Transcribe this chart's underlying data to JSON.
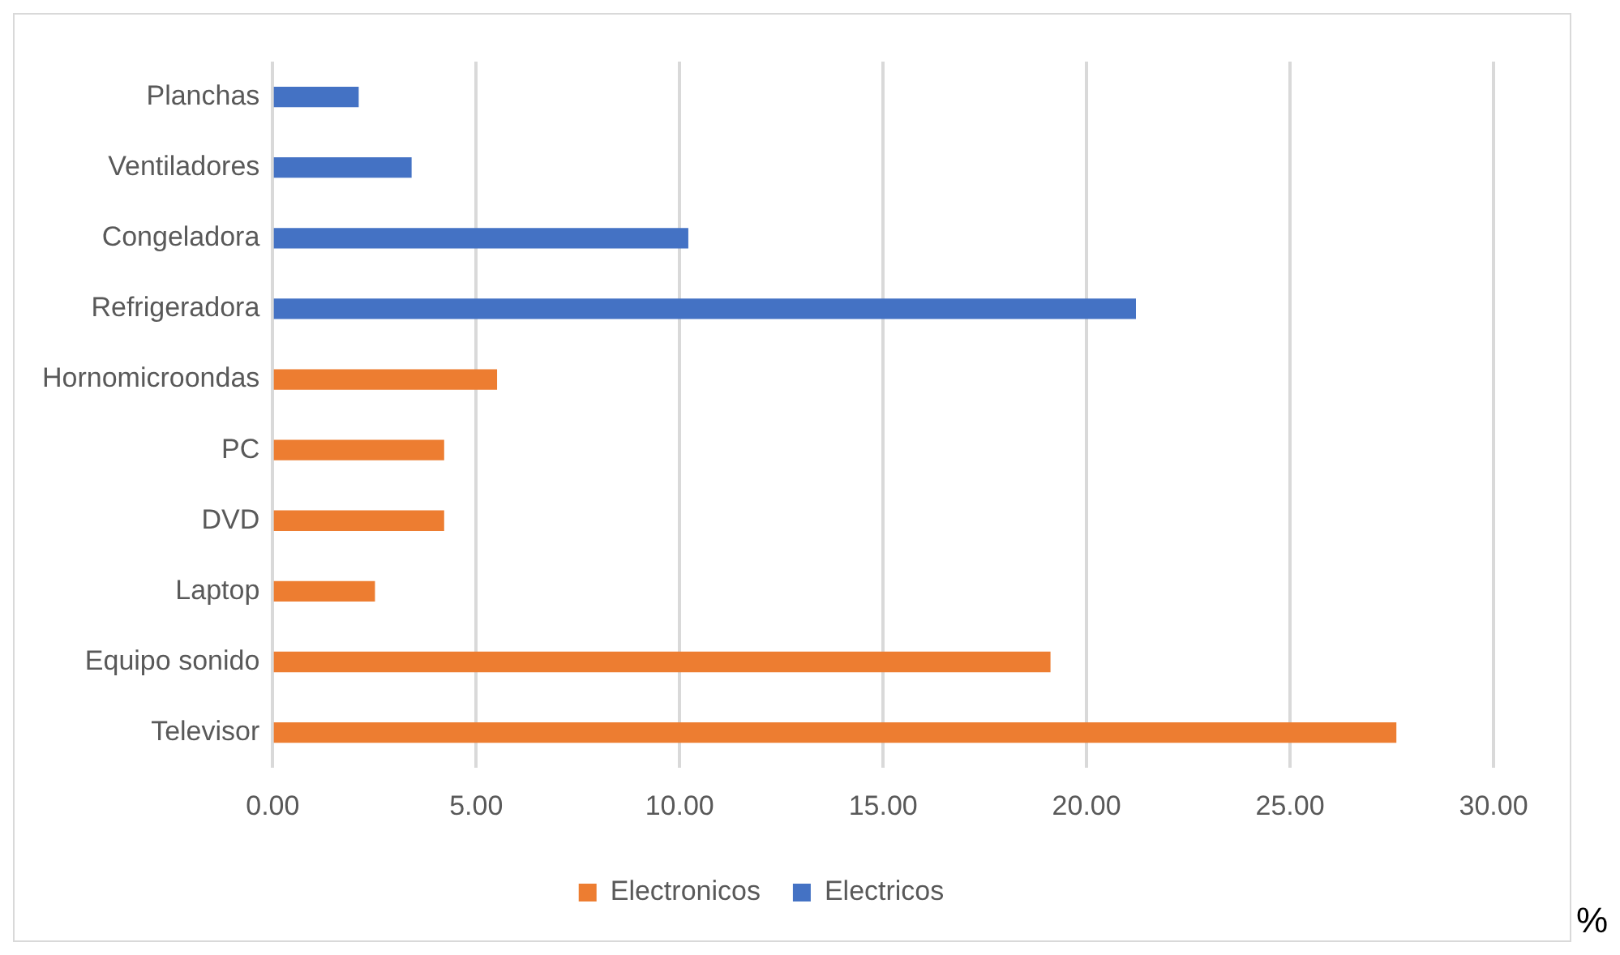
{
  "chart_data": {
    "type": "bar",
    "orientation": "horizontal",
    "categories": [
      "Planchas",
      "Ventiladores",
      "Congeladora",
      "Refrigeradora",
      "Hornomicroondas",
      "PC",
      "DVD",
      "Laptop",
      "Equipo sonido",
      "Televisor"
    ],
    "series": [
      {
        "name": "Electronicos",
        "color": "#ed7d31",
        "values": [
          null,
          null,
          null,
          null,
          5.5,
          4.2,
          4.2,
          2.5,
          19.1,
          27.6
        ]
      },
      {
        "name": "Electricos",
        "color": "#4472c4",
        "values": [
          2.1,
          3.4,
          10.2,
          21.2,
          null,
          null,
          null,
          null,
          null,
          null
        ]
      }
    ],
    "xlim": [
      0,
      30
    ],
    "xticks": [
      {
        "value": 0,
        "label": "0.00"
      },
      {
        "value": 5,
        "label": "5.00"
      },
      {
        "value": 10,
        "label": "10.00"
      },
      {
        "value": 15,
        "label": "15.00"
      },
      {
        "value": 20,
        "label": "20.00"
      },
      {
        "value": 25,
        "label": "25.00"
      },
      {
        "value": 30,
        "label": "30.00"
      }
    ],
    "grid": "x",
    "legend": "bottom",
    "annotations": [
      "%"
    ]
  }
}
